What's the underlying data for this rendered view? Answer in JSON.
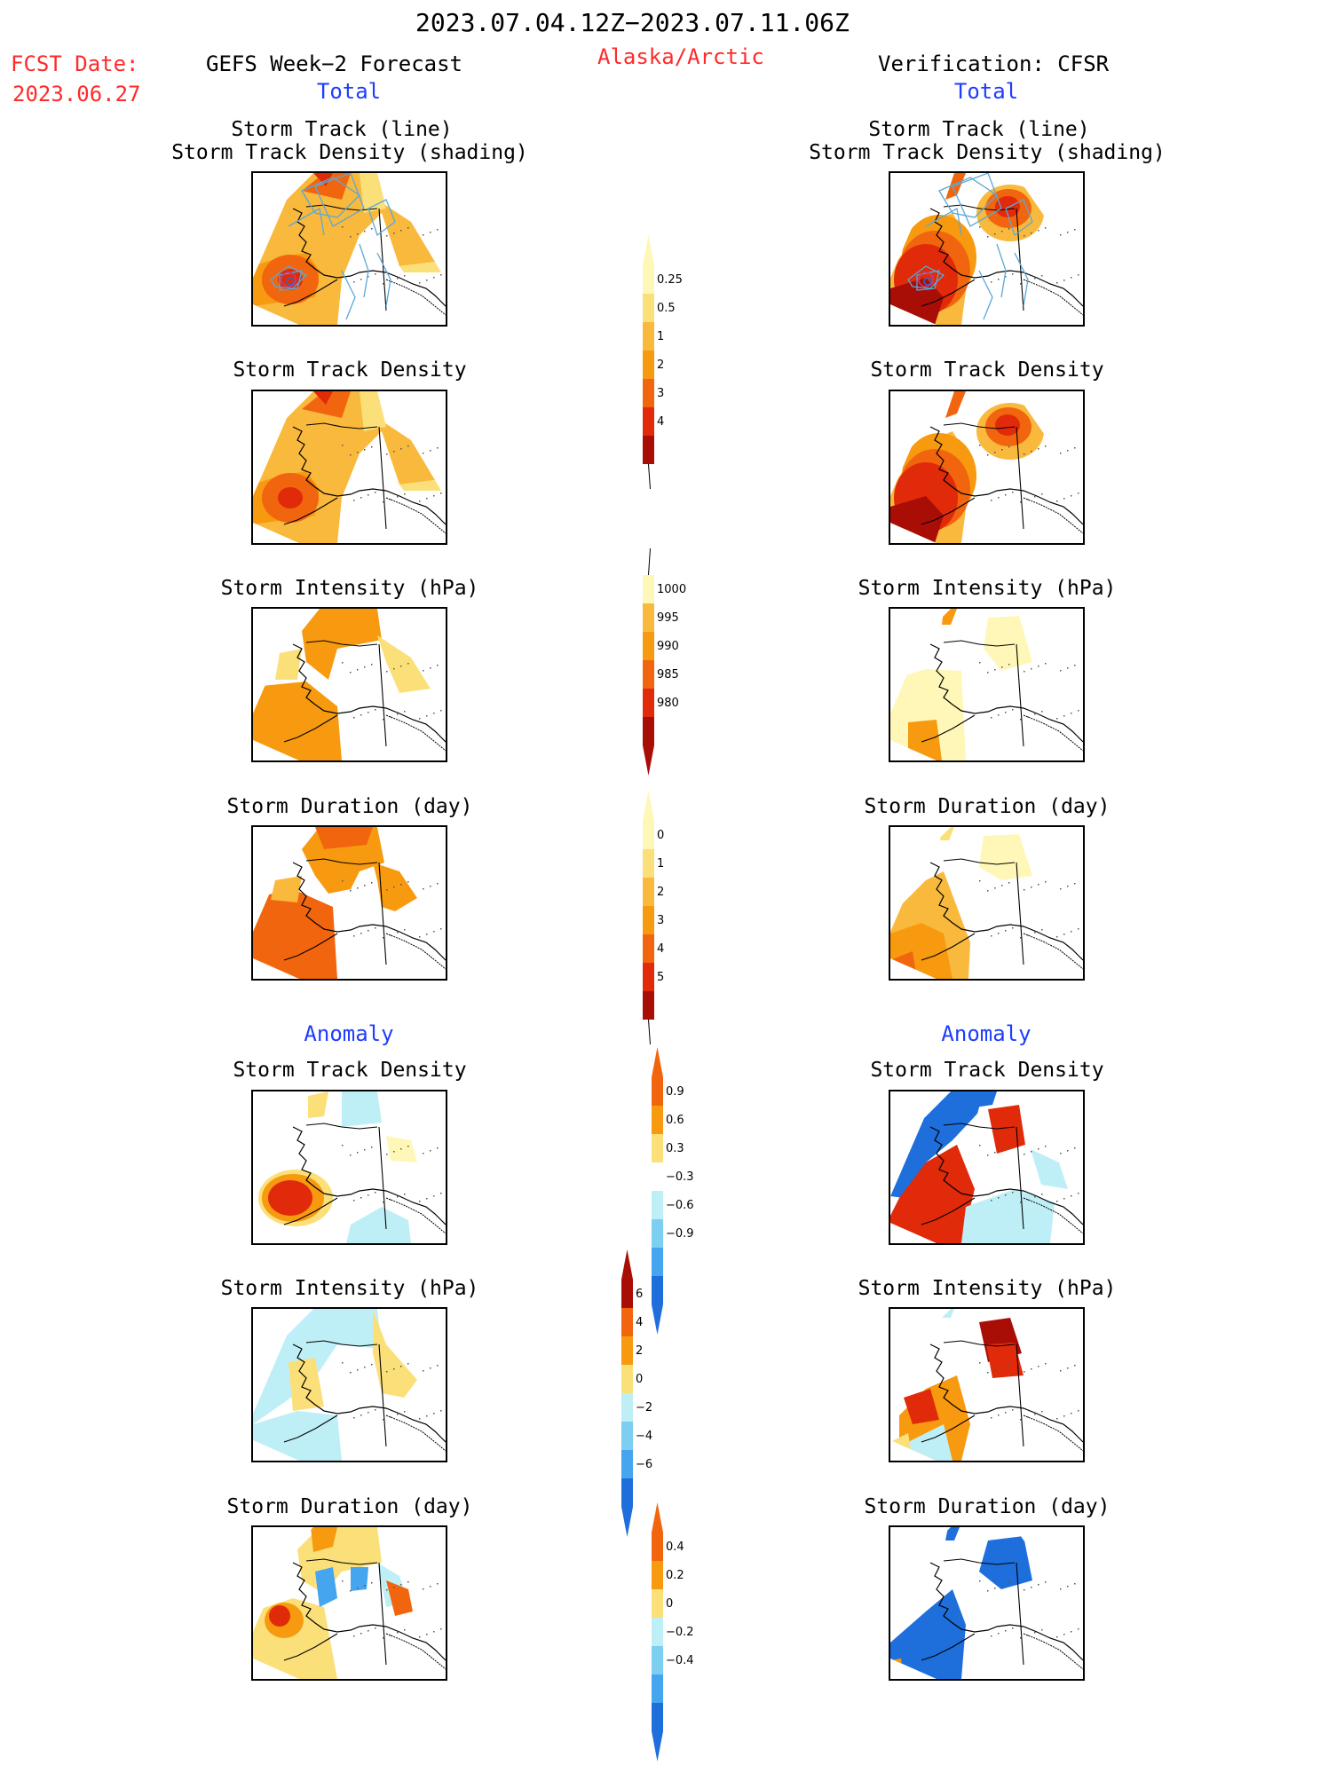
{
  "header": {
    "date_range": "2023.07.04.12Z−2023.07.11.06Z",
    "fcst_label": "FCST Date:",
    "fcst_date": "2023.06.27",
    "left_title": "GEFS Week−2 Forecast",
    "region": "Alaska/Arctic",
    "right_title": "Verification: CFSR",
    "left_section": "Total",
    "right_section": "Total"
  },
  "labels": {
    "track_line": "Storm Track (line)",
    "track_shading": "Storm Track Density (shading)",
    "density": "Storm Track Density",
    "intensity": "Storm Intensity (hPa)",
    "duration": "Storm Duration (day)",
    "anomaly": "Anomaly"
  },
  "colors": {
    "warm": [
      "#fff7b8",
      "#fbe07a",
      "#f9b93c",
      "#f79a0f",
      "#f2650f",
      "#e02a0a",
      "#a80d06"
    ],
    "cool": [
      "#bfeff6",
      "#7ccff0",
      "#45a5ee",
      "#1e6fdc",
      "#0d4bb8"
    ],
    "track_line": "#5aa8d8",
    "coast": "#000000"
  },
  "chart_data": [
    {
      "type": "heatmap",
      "panel": "gefs-total-track",
      "title": "Storm Track (line)",
      "subtitle": "Storm Track Density (shading)",
      "pattern": "density_fcst",
      "track_lines": true
    },
    {
      "type": "heatmap",
      "panel": "cfsr-total-track",
      "title": "Storm Track (line)",
      "subtitle": "Storm Track Density (shading)",
      "pattern": "density_ver",
      "track_lines": true
    },
    {
      "type": "heatmap",
      "panel": "gefs-total-density",
      "title": "Storm Track Density",
      "pattern": "density_fcst"
    },
    {
      "type": "heatmap",
      "panel": "cfsr-total-density",
      "title": "Storm Track Density",
      "pattern": "density_ver"
    },
    {
      "type": "heatmap",
      "panel": "gefs-total-intensity",
      "title": "Storm Intensity (hPa)",
      "pattern": "intensity_fcst"
    },
    {
      "type": "heatmap",
      "panel": "cfsr-total-intensity",
      "title": "Storm Intensity (hPa)",
      "pattern": "intensity_ver"
    },
    {
      "type": "heatmap",
      "panel": "gefs-total-duration",
      "title": "Storm Duration (day)",
      "pattern": "duration_fcst"
    },
    {
      "type": "heatmap",
      "panel": "cfsr-total-duration",
      "title": "Storm Duration (day)",
      "pattern": "duration_ver"
    },
    {
      "type": "heatmap",
      "panel": "gefs-anom-density",
      "title": "Storm Track Density",
      "pattern": "anom_density_fcst"
    },
    {
      "type": "heatmap",
      "panel": "cfsr-anom-density",
      "title": "Storm Track Density",
      "pattern": "anom_density_ver"
    },
    {
      "type": "heatmap",
      "panel": "gefs-anom-intensity",
      "title": "Storm Intensity (hPa)",
      "pattern": "anom_intensity_fcst"
    },
    {
      "type": "heatmap",
      "panel": "cfsr-anom-intensity",
      "title": "Storm Intensity (hPa)",
      "pattern": "anom_intensity_ver"
    },
    {
      "type": "heatmap",
      "panel": "gefs-anom-duration",
      "title": "Storm Duration (day)",
      "pattern": "anom_duration_fcst"
    },
    {
      "type": "heatmap",
      "panel": "cfsr-anom-duration",
      "title": "Storm Duration (day)",
      "pattern": "anom_duration_ver"
    }
  ],
  "colorbars": [
    {
      "name": "density-total",
      "ticks": [
        "0.25",
        "0.5",
        "1",
        "2",
        "3",
        "4"
      ],
      "colors": [
        "#fff7b8",
        "#fbe07a",
        "#f9b93c",
        "#f79a0f",
        "#f2650f",
        "#e02a0a",
        "#a80d06"
      ],
      "under": "none",
      "over": "arrow"
    },
    {
      "name": "intensity-total",
      "ticks": [
        "1000",
        "995",
        "990",
        "985",
        "980"
      ],
      "colors": [
        "#fff7b8",
        "#f9b93c",
        "#f79a0f",
        "#f2650f",
        "#e02a0a",
        "#a80d06"
      ],
      "under": "arrow",
      "over": "none"
    },
    {
      "name": "duration-total",
      "ticks": [
        "0",
        "1",
        "2",
        "3",
        "4",
        "5"
      ],
      "colors": [
        "#fff7b8",
        "#fbe07a",
        "#f9b93c",
        "#f79a0f",
        "#f2650f",
        "#e02a0a",
        "#a80d06"
      ],
      "under": "none",
      "over": "arrow"
    },
    {
      "name": "density-anomaly",
      "ticks": [
        "0.9",
        "0.6",
        "0.3",
        "−0.3",
        "−0.6",
        "−0.9"
      ],
      "colors": [
        "#f2650f",
        "#f79a0f",
        "#fbe07a",
        "#ffffff",
        "#bfeff6",
        "#7ccff0",
        "#45a5ee",
        "#1e6fdc"
      ],
      "under": "arrow",
      "over": "arrow"
    },
    {
      "name": "intensity-anomaly",
      "ticks": [
        "6",
        "4",
        "2",
        "0",
        "−2",
        "−4",
        "−6"
      ],
      "colors": [
        "#a80d06",
        "#f2650f",
        "#f79a0f",
        "#fbe07a",
        "#bfeff6",
        "#7ccff0",
        "#45a5ee",
        "#1e6fdc"
      ],
      "under": "arrow",
      "over": "arrow"
    },
    {
      "name": "duration-anomaly",
      "ticks": [
        "0.4",
        "0.2",
        "0",
        "−0.2",
        "−0.4"
      ],
      "colors": [
        "#f2650f",
        "#f79a0f",
        "#fbe07a",
        "#bfeff6",
        "#7ccff0",
        "#45a5ee",
        "#1e6fdc"
      ],
      "under": "arrow",
      "over": "arrow"
    }
  ]
}
